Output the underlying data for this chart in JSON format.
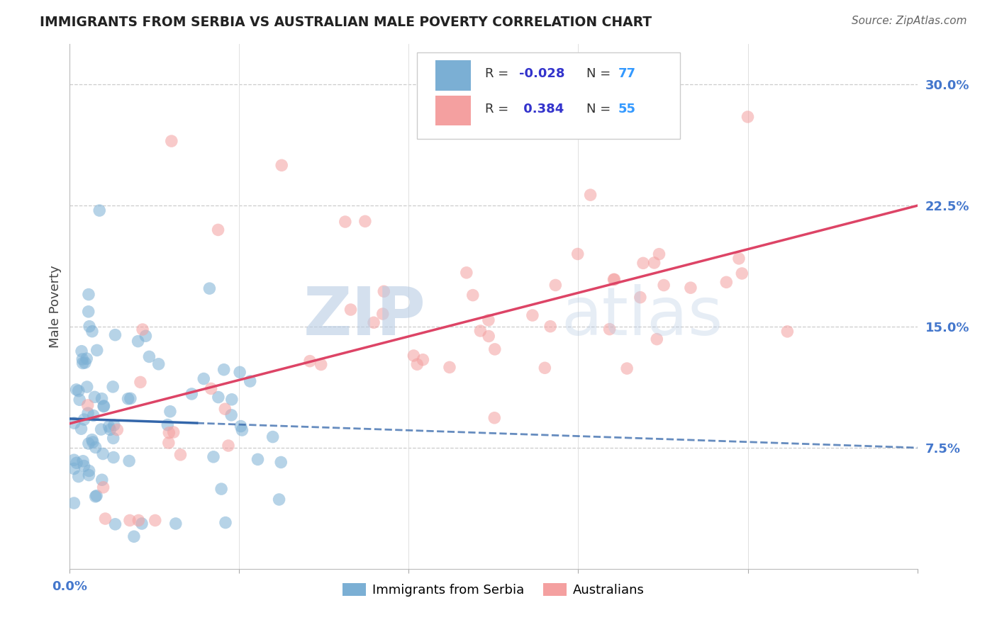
{
  "title": "IMMIGRANTS FROM SERBIA VS AUSTRALIAN MALE POVERTY CORRELATION CHART",
  "source": "Source: ZipAtlas.com",
  "ylabel": "Male Poverty",
  "y_ticks": [
    0.075,
    0.15,
    0.225,
    0.3
  ],
  "y_tick_labels": [
    "7.5%",
    "15.0%",
    "22.5%",
    "30.0%"
  ],
  "x_lim": [
    0.0,
    0.2
  ],
  "y_lim": [
    0.0,
    0.325
  ],
  "blue_color": "#7bafd4",
  "pink_color": "#f4a0a0",
  "blue_line_color": "#3366aa",
  "pink_line_color": "#dd4466",
  "legend_r1_val": "-0.028",
  "legend_n1_val": "77",
  "legend_r2_val": "0.384",
  "legend_n2_val": "55",
  "r_color": "#3333cc",
  "n_color": "#3399ff",
  "watermark_zip": "ZIP",
  "watermark_atlas": "atlas"
}
